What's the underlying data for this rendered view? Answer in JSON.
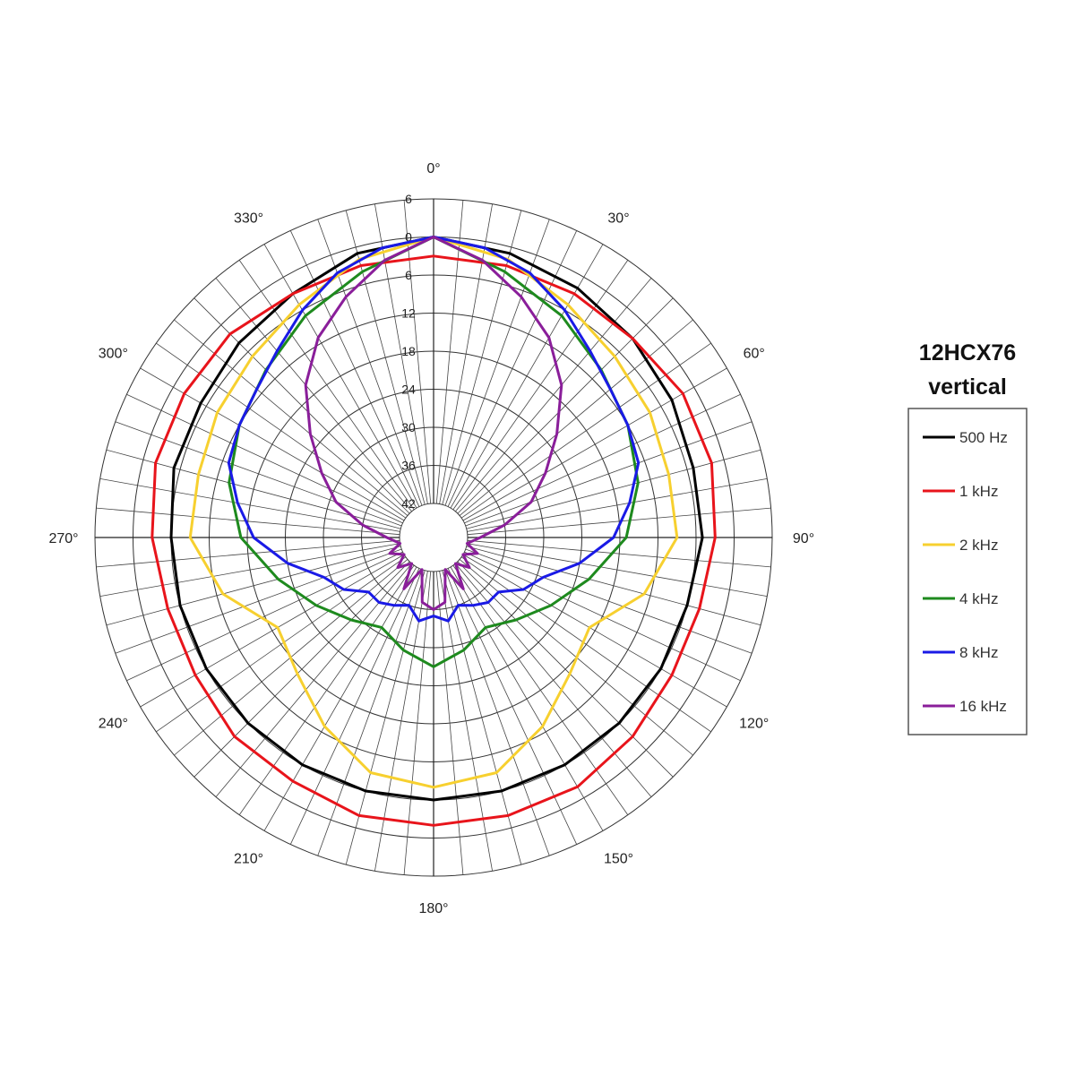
{
  "chart_data": {
    "type": "polar-line",
    "title": [
      "12HCX76",
      "vertical"
    ],
    "angle_labels": [
      "0°",
      "30°",
      "60°",
      "90°",
      "120°",
      "150°",
      "180°",
      "210°",
      "240°",
      "270°",
      "300°",
      "330°"
    ],
    "ring_labels": [
      "6",
      "0",
      "6",
      "12",
      "18",
      "24",
      "30",
      "36",
      "42"
    ],
    "radial_range": [
      6,
      -42
    ],
    "angle_step_deg": 5,
    "series": [
      {
        "name": "500 Hz",
        "color": "#000000",
        "points": [
          [
            0,
            0
          ],
          [
            15,
            -1
          ],
          [
            30,
            -2
          ],
          [
            45,
            -3
          ],
          [
            60,
            -4
          ],
          [
            75,
            -5
          ],
          [
            90,
            -5
          ],
          [
            105,
            -6
          ],
          [
            120,
            -6
          ],
          [
            135,
            -6
          ],
          [
            150,
            -6
          ],
          [
            165,
            -6
          ],
          [
            180,
            -6
          ],
          [
            195,
            -6
          ],
          [
            210,
            -6
          ],
          [
            225,
            -6
          ],
          [
            240,
            -6
          ],
          [
            255,
            -6
          ],
          [
            270,
            -6
          ],
          [
            285,
            -5
          ],
          [
            300,
            -5
          ],
          [
            315,
            -4
          ],
          [
            330,
            -3
          ],
          [
            345,
            -1
          ]
        ]
      },
      {
        "name": "1 kHz",
        "color": "#e8141b",
        "points": [
          [
            0,
            -3
          ],
          [
            15,
            -3
          ],
          [
            30,
            -3
          ],
          [
            45,
            -3
          ],
          [
            60,
            -2
          ],
          [
            75,
            -2
          ],
          [
            90,
            -3
          ],
          [
            105,
            -4
          ],
          [
            120,
            -4
          ],
          [
            135,
            -3
          ],
          [
            150,
            -2
          ],
          [
            165,
            -2
          ],
          [
            180,
            -2
          ],
          [
            195,
            -2
          ],
          [
            210,
            -3
          ],
          [
            225,
            -3
          ],
          [
            240,
            -4
          ],
          [
            255,
            -4
          ],
          [
            270,
            -3
          ],
          [
            285,
            -2
          ],
          [
            300,
            -2
          ],
          [
            315,
            -2
          ],
          [
            330,
            -3
          ],
          [
            345,
            -3
          ]
        ]
      },
      {
        "name": "2 kHz",
        "color": "#f7d02f",
        "points": [
          [
            0,
            0
          ],
          [
            15,
            -2
          ],
          [
            30,
            -5
          ],
          [
            45,
            -7
          ],
          [
            60,
            -8
          ],
          [
            75,
            -9
          ],
          [
            90,
            -9
          ],
          [
            105,
            -13
          ],
          [
            120,
            -19
          ],
          [
            135,
            -17
          ],
          [
            150,
            -13
          ],
          [
            165,
            -9
          ],
          [
            180,
            -8
          ],
          [
            195,
            -9
          ],
          [
            210,
            -13
          ],
          [
            225,
            -17
          ],
          [
            240,
            -19
          ],
          [
            255,
            -13
          ],
          [
            270,
            -9
          ],
          [
            285,
            -9
          ],
          [
            300,
            -8
          ],
          [
            315,
            -7
          ],
          [
            330,
            -5
          ],
          [
            345,
            -2
          ]
        ]
      },
      {
        "name": "4 kHz",
        "color": "#1e8a1e",
        "points": [
          [
            0,
            0
          ],
          [
            15,
            -4
          ],
          [
            30,
            -7
          ],
          [
            45,
            -10
          ],
          [
            60,
            -12
          ],
          [
            75,
            -14
          ],
          [
            90,
            -17
          ],
          [
            105,
            -22
          ],
          [
            120,
            -26
          ],
          [
            135,
            -29
          ],
          [
            150,
            -31
          ],
          [
            165,
            -29
          ],
          [
            180,
            -27
          ],
          [
            195,
            -29
          ],
          [
            210,
            -31
          ],
          [
            225,
            -29
          ],
          [
            240,
            -26
          ],
          [
            255,
            -22
          ],
          [
            270,
            -17
          ],
          [
            285,
            -14
          ],
          [
            300,
            -12
          ],
          [
            315,
            -10
          ],
          [
            330,
            -7
          ],
          [
            345,
            -4
          ]
        ]
      },
      {
        "name": "8 kHz",
        "color": "#1a1ae6",
        "points": [
          [
            0,
            0
          ],
          [
            10,
            -1
          ],
          [
            20,
            -3
          ],
          [
            30,
            -6
          ],
          [
            40,
            -9
          ],
          [
            50,
            -11
          ],
          [
            60,
            -12
          ],
          [
            70,
            -13
          ],
          [
            80,
            -16
          ],
          [
            90,
            -19
          ],
          [
            100,
            -24
          ],
          [
            110,
            -29
          ],
          [
            120,
            -31
          ],
          [
            130,
            -34
          ],
          [
            140,
            -34
          ],
          [
            150,
            -35
          ],
          [
            160,
            -36
          ],
          [
            170,
            -34
          ],
          [
            180,
            -35
          ],
          [
            190,
            -34
          ],
          [
            200,
            -36
          ],
          [
            210,
            -35
          ],
          [
            220,
            -34
          ],
          [
            230,
            -34
          ],
          [
            240,
            -31
          ],
          [
            250,
            -29
          ],
          [
            260,
            -24
          ],
          [
            270,
            -19
          ],
          [
            280,
            -16
          ],
          [
            290,
            -13
          ],
          [
            300,
            -12
          ],
          [
            310,
            -11
          ],
          [
            320,
            -9
          ],
          [
            330,
            -6
          ],
          [
            340,
            -3
          ],
          [
            350,
            -1
          ]
        ]
      },
      {
        "name": "16 kHz",
        "color": "#8a1e9a",
        "points": [
          [
            0,
            0
          ],
          [
            10,
            -3
          ],
          [
            20,
            -7
          ],
          [
            30,
            -11
          ],
          [
            40,
            -16
          ],
          [
            50,
            -22
          ],
          [
            60,
            -27
          ],
          [
            70,
            -31
          ],
          [
            80,
            -36
          ],
          [
            90,
            -40
          ],
          [
            100,
            -42
          ],
          [
            110,
            -40
          ],
          [
            120,
            -42
          ],
          [
            130,
            -40
          ],
          [
            140,
            -42
          ],
          [
            150,
            -38
          ],
          [
            160,
            -42
          ],
          [
            170,
            -37
          ],
          [
            180,
            -36
          ],
          [
            190,
            -37
          ],
          [
            200,
            -42
          ],
          [
            210,
            -38
          ],
          [
            220,
            -42
          ],
          [
            230,
            -40
          ],
          [
            240,
            -42
          ],
          [
            250,
            -40
          ],
          [
            260,
            -42
          ],
          [
            270,
            -40
          ],
          [
            280,
            -36
          ],
          [
            290,
            -31
          ],
          [
            300,
            -27
          ],
          [
            310,
            -22
          ],
          [
            320,
            -16
          ],
          [
            330,
            -11
          ],
          [
            340,
            -7
          ],
          [
            350,
            -3
          ]
        ]
      }
    ],
    "legend_position": "right",
    "grid": true
  }
}
